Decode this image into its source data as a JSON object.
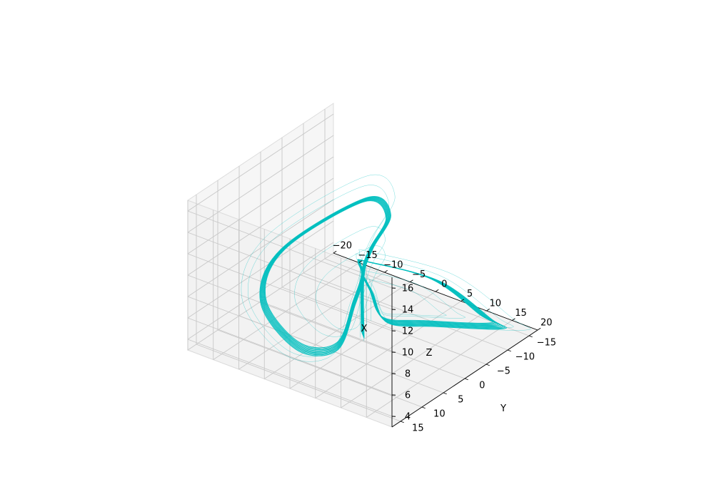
{
  "chart_data": {
    "type": "line",
    "projection": "3d",
    "title": "",
    "xlabel": "X",
    "ylabel": "Y",
    "zlabel": "Z",
    "x_ticks": [
      -20,
      -15,
      -10,
      -5,
      0,
      5,
      10,
      15,
      20
    ],
    "y_ticks": [
      -15,
      -10,
      -5,
      0,
      5,
      10,
      15
    ],
    "z_ticks": [
      4,
      6,
      8,
      10,
      12,
      14,
      16
    ],
    "x_tick_labels": [
      "−20",
      "−15",
      "−10",
      "−5",
      "0",
      "5",
      "10",
      "15",
      "20"
    ],
    "y_tick_labels": [
      "−15",
      "−10",
      "−5",
      "0",
      "5",
      "10",
      "15"
    ],
    "z_tick_labels": [
      "4",
      "6",
      "8",
      "10",
      "12",
      "14",
      "16"
    ],
    "xlim": [
      -20,
      20
    ],
    "ylim": [
      -17,
      17
    ],
    "zlim": [
      3,
      17
    ],
    "grid": true,
    "line_color": "#00bfbf",
    "pane_color": "#f2f2f2",
    "series": [
      {
        "color": "#00bfbf",
        "points": [
          [
            0,
            0,
            3.5
          ],
          [
            0,
            0,
            9
          ],
          [
            0,
            -2,
            11
          ],
          [
            0,
            -6,
            13
          ],
          [
            -8,
            -10,
            12
          ],
          [
            -19,
            -4,
            7
          ],
          [
            -17,
            3,
            4.5
          ],
          [
            -6,
            8,
            3.5
          ],
          [
            0,
            6,
            4
          ],
          [
            0,
            2,
            7
          ],
          [
            0,
            0,
            9
          ],
          [
            1,
            2,
            11
          ],
          [
            6,
            6,
            13
          ],
          [
            16,
            2,
            12
          ],
          [
            19,
            -6,
            7
          ],
          [
            16,
            -12,
            4
          ],
          [
            6,
            -8,
            3.5
          ],
          [
            1,
            -4,
            4
          ],
          [
            0,
            -2,
            7
          ],
          [
            0,
            0,
            9
          ]
        ]
      }
    ]
  }
}
